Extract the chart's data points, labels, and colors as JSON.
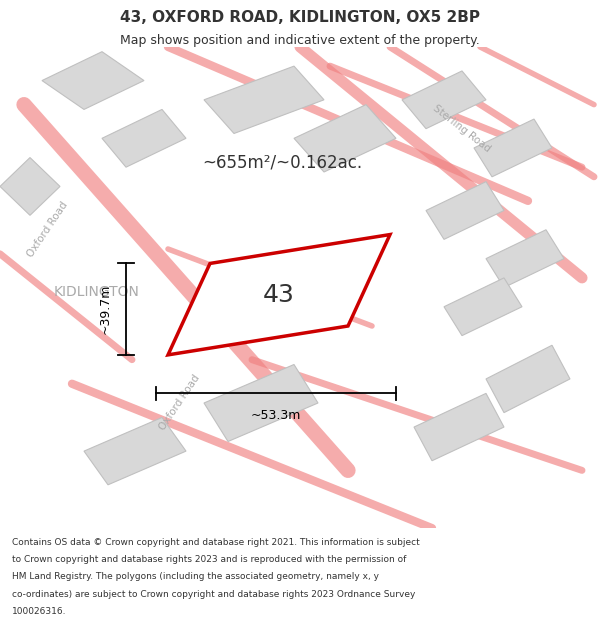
{
  "title": "43, OXFORD ROAD, KIDLINGTON, OX5 2BP",
  "subtitle": "Map shows position and indicative extent of the property.",
  "area_text": "~655m²/~0.162ac.",
  "property_number": "43",
  "width_label": "~53.3m",
  "height_label": "~39.7m",
  "footer_lines": [
    "Contains OS data © Crown copyright and database right 2021. This information is subject",
    "to Crown copyright and database rights 2023 and is reproduced with the permission of",
    "HM Land Registry. The polygons (including the associated geometry, namely x, y",
    "co-ordinates) are subject to Crown copyright and database rights 2023 Ordnance Survey",
    "100026316."
  ],
  "road_color": "#f08080",
  "building_color": "#d8d8d8",
  "building_outline": "#c0c0c0",
  "property_outline": "#cc0000",
  "text_color": "#333333",
  "dim_color": "#000000",
  "label_gray": "#aaaaaa",
  "map_bg": "#f0f0f0"
}
